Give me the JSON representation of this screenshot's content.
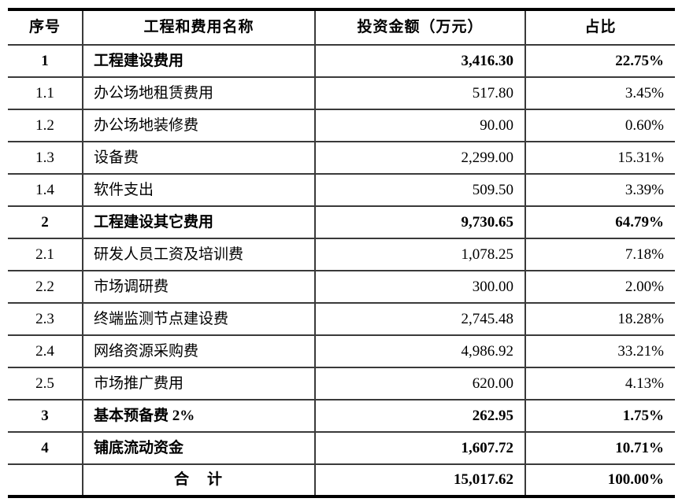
{
  "table": {
    "columns": [
      {
        "label": "序号"
      },
      {
        "label": "工程和费用名称"
      },
      {
        "label": "投资金额（万元）"
      },
      {
        "label": "占比"
      }
    ],
    "rows": [
      {
        "no": "1",
        "name": "工程建设费用",
        "amount": "3,416.30",
        "pct": "22.75%",
        "bold": true,
        "total": false
      },
      {
        "no": "1.1",
        "name": "办公场地租赁费用",
        "amount": "517.80",
        "pct": "3.45%",
        "bold": false,
        "total": false
      },
      {
        "no": "1.2",
        "name": "办公场地装修费",
        "amount": "90.00",
        "pct": "0.60%",
        "bold": false,
        "total": false
      },
      {
        "no": "1.3",
        "name": "设备费",
        "amount": "2,299.00",
        "pct": "15.31%",
        "bold": false,
        "total": false
      },
      {
        "no": "1.4",
        "name": "软件支出",
        "amount": "509.50",
        "pct": "3.39%",
        "bold": false,
        "total": false
      },
      {
        "no": "2",
        "name": "工程建设其它费用",
        "amount": "9,730.65",
        "pct": "64.79%",
        "bold": true,
        "total": false
      },
      {
        "no": "2.1",
        "name": "研发人员工资及培训费",
        "amount": "1,078.25",
        "pct": "7.18%",
        "bold": false,
        "total": false
      },
      {
        "no": "2.2",
        "name": "市场调研费",
        "amount": "300.00",
        "pct": "2.00%",
        "bold": false,
        "total": false
      },
      {
        "no": "2.3",
        "name": "终端监测节点建设费",
        "amount": "2,745.48",
        "pct": "18.28%",
        "bold": false,
        "total": false
      },
      {
        "no": "2.4",
        "name": "网络资源采购费",
        "amount": "4,986.92",
        "pct": "33.21%",
        "bold": false,
        "total": false
      },
      {
        "no": "2.5",
        "name": "市场推广费用",
        "amount": "620.00",
        "pct": "4.13%",
        "bold": false,
        "total": false
      },
      {
        "no": "3",
        "name": "基本预备费 2%",
        "amount": "262.95",
        "pct": "1.75%",
        "bold": true,
        "total": false
      },
      {
        "no": "4",
        "name": "铺底流动资金",
        "amount": "1,607.72",
        "pct": "10.71%",
        "bold": true,
        "total": false
      },
      {
        "no": "",
        "name": "合　计",
        "amount": "15,017.62",
        "pct": "100.00%",
        "bold": true,
        "total": true
      }
    ]
  }
}
